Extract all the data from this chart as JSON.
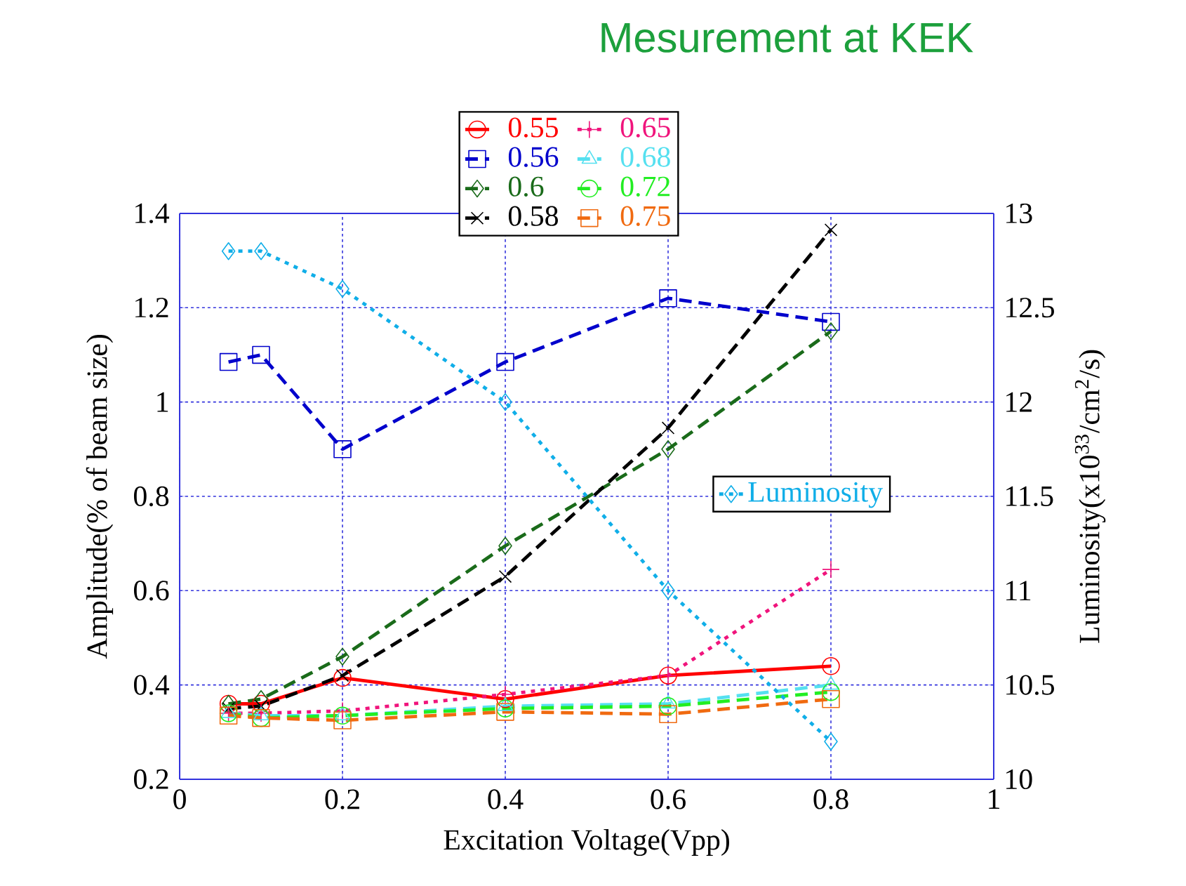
{
  "chart_data": {
    "type": "line",
    "title": "Mesurement at KEK",
    "xlabel": "Excitation Voltage(Vpp)",
    "ylabel": "Amplitude(% of beam size)",
    "y2label": "Luminosity(x10$^{33}$/cm$^{2}$/s)",
    "x": [
      0.06,
      0.1,
      0.2,
      0.4,
      0.6,
      0.8
    ],
    "series": [
      {
        "name": "0.55",
        "color": "#ff0000",
        "marker": "circle",
        "line_style": "solid",
        "values": [
          0.36,
          0.36,
          0.415,
          0.37,
          0.42,
          0.44
        ]
      },
      {
        "name": "0.56",
        "color": "#0000cc",
        "marker": "square",
        "line_style": "dashed",
        "values": [
          1.085,
          1.1,
          0.9,
          1.085,
          1.22,
          1.17
        ]
      },
      {
        "name": "0.6",
        "color": "#1a6b1a",
        "marker": "diamond",
        "line_style": "dashed",
        "values": [
          0.36,
          0.37,
          0.46,
          0.695,
          0.9,
          1.15
        ]
      },
      {
        "name": "0.58",
        "color": "#000000",
        "marker": "cross",
        "line_style": "dashed",
        "values": [
          0.35,
          0.355,
          0.42,
          0.63,
          0.945,
          1.365
        ]
      },
      {
        "name": "0.65",
        "color": "#f0147c",
        "marker": "plus",
        "line_style": "dotted",
        "values": [
          0.34,
          0.34,
          0.345,
          0.38,
          0.42,
          0.645
        ]
      },
      {
        "name": "0.68",
        "color": "#55e0f0",
        "marker": "triangle",
        "line_style": "dashed",
        "values": [
          0.34,
          0.335,
          0.335,
          0.355,
          0.36,
          0.4
        ]
      },
      {
        "name": "0.72",
        "color": "#22ee22",
        "marker": "circle",
        "line_style": "dashed",
        "values": [
          0.34,
          0.33,
          0.335,
          0.35,
          0.355,
          0.385
        ]
      },
      {
        "name": "0.75",
        "color": "#f06a10",
        "marker": "square",
        "line_style": "dashed",
        "values": [
          0.335,
          0.33,
          0.325,
          0.343,
          0.338,
          0.37
        ]
      },
      {
        "name": "Luminosity",
        "color": "#10aee8",
        "marker": "diamond",
        "line_style": "dotted",
        "axis": "y2",
        "values": [
          12.8,
          12.8,
          12.6,
          12.0,
          11.0,
          10.2
        ]
      }
    ],
    "xlim": [
      0,
      1
    ],
    "xticks": [
      0,
      0.2,
      0.4,
      0.6,
      0.8,
      1
    ],
    "ylim": [
      0.2,
      1.4
    ],
    "yticks": [
      0.2,
      0.4,
      0.6,
      0.8,
      1,
      1.2,
      1.4
    ],
    "y2lim": [
      10,
      13
    ],
    "y2ticks": [
      10,
      10.5,
      11,
      11.5,
      12,
      12.5,
      13
    ],
    "grid": true,
    "legend": "top"
  }
}
